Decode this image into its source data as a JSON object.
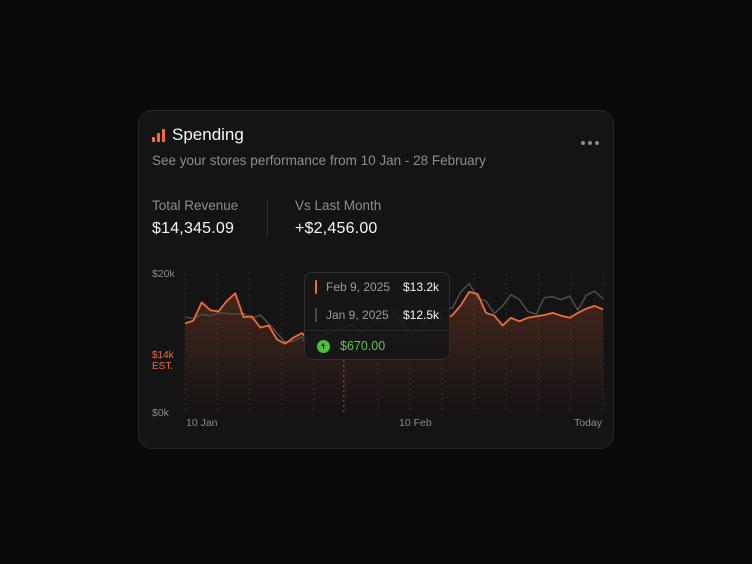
{
  "header": {
    "title": "Spending",
    "title_icon": "bar-chart-icon",
    "subtitle": "See your stores performance from 10 Jan - 28 February",
    "menu_icon": "more-dots-icon"
  },
  "stats": [
    {
      "label": "Total Revenue",
      "value": "$14,345.09"
    },
    {
      "label": "Vs Last Month",
      "value": "+$2,456.00"
    }
  ],
  "tooltip": {
    "current": {
      "date": "Feb 9, 2025",
      "value": "$13.2k"
    },
    "previous": {
      "date": "Jan 9, 2025",
      "value": "$12.5k"
    },
    "difference": "$670.00",
    "difference_icon": "arrow-up-circle-icon"
  },
  "colors": {
    "accent": "#f26b3a",
    "previous": "#4a4a4a",
    "positive": "#59c945"
  },
  "chart_data": {
    "type": "line",
    "title": "",
    "xlabel": "",
    "ylabel": "",
    "ylim": [
      0,
      20000
    ],
    "y_ticks": [
      "$20k",
      "$0k"
    ],
    "x_ticks": [
      "10 Jan",
      "10 Feb",
      "Today"
    ],
    "estimate": {
      "value": 14000,
      "label": "$14k",
      "sublabel": "EST."
    },
    "grid": "vertical-dotted",
    "series": [
      {
        "values": [
          12800,
          13200,
          15800,
          14700,
          14500,
          16000,
          17100,
          13700,
          13800,
          12200,
          12500,
          10500,
          9900,
          10800,
          11400,
          10300,
          10900,
          11300,
          11800,
          12200,
          12700,
          11500,
          12100,
          13400,
          13300,
          14200,
          12900,
          11000,
          11900,
          13500,
          14500,
          13300,
          14000,
          15400,
          17300,
          17000,
          14300,
          13900,
          12500,
          13600,
          13100,
          13600,
          13800,
          14000,
          14300,
          13900,
          13600,
          14300,
          14900,
          15300,
          14800
        ]
      },
      {
        "values": [
          13700,
          13500,
          14100,
          13900,
          14300,
          14200,
          14100,
          14200,
          13500,
          14000,
          12800,
          11400,
          10100,
          10300,
          10900,
          8600,
          11000,
          11500,
          12400,
          13400,
          14100,
          12900,
          12300,
          12800,
          14100,
          14800,
          13400,
          11400,
          12700,
          14300,
          13200,
          14800,
          15000,
          17300,
          18500,
          16400,
          16000,
          14200,
          15300,
          16900,
          16200,
          14500,
          14100,
          16500,
          16600,
          16200,
          16700,
          14700,
          16800,
          17400,
          16300
        ]
      }
    ]
  }
}
